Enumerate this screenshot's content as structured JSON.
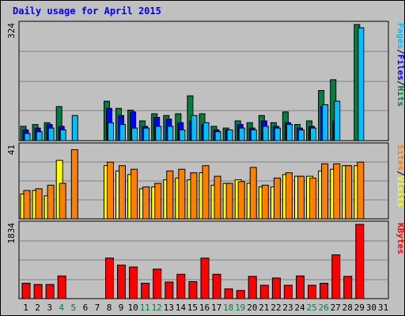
{
  "chart_data": {
    "type": "bar",
    "title": "Daily usage for April 2015",
    "days": [
      "1",
      "2",
      "3",
      "4",
      "5",
      "6",
      "7",
      "8",
      "9",
      "10",
      "11",
      "12",
      "13",
      "14",
      "15",
      "16",
      "17",
      "18",
      "19",
      "20",
      "21",
      "22",
      "23",
      "24",
      "25",
      "26",
      "27",
      "28",
      "29",
      "30",
      "31"
    ],
    "weekend_days": [
      "4",
      "5",
      "11",
      "12",
      "18",
      "19",
      "25",
      "26"
    ],
    "panels": [
      {
        "ylabel_max": "324",
        "ymax": 324,
        "legend": [
          "Pages",
          "/",
          "Files",
          "/",
          "Hits"
        ],
        "legend_colors": [
          "#00c0ff",
          "#000000",
          "#0000ff",
          "#000000",
          "#008040"
        ],
        "series": [
          {
            "name": "Hits",
            "color": "#008040",
            "values": [
              40,
              45,
              50,
              95,
              0,
              0,
              0,
              110,
              90,
              85,
              55,
              75,
              70,
              75,
              125,
              75,
              40,
              35,
              55,
              50,
              70,
              50,
              80,
              45,
              55,
              140,
              170,
              0,
              324,
              0,
              0
            ]
          },
          {
            "name": "Files",
            "color": "#0000ff",
            "values": [
              30,
              35,
              45,
              40,
              0,
              0,
              0,
              90,
              70,
              80,
              40,
              65,
              60,
              50,
              55,
              45,
              30,
              30,
              45,
              35,
              55,
              40,
              50,
              35,
              40,
              95,
              55,
              0,
              0,
              0,
              0
            ]
          },
          {
            "name": "Pages",
            "color": "#00c0ff",
            "values": [
              20,
              25,
              35,
              30,
              70,
              0,
              0,
              50,
              45,
              35,
              35,
              40,
              40,
              30,
              70,
              50,
              25,
              30,
              35,
              30,
              40,
              35,
              45,
              30,
              35,
              100,
              110,
              0,
              315,
              0,
              0
            ]
          }
        ]
      },
      {
        "ylabel_max": "41",
        "ymax": 41,
        "legend": [
          "Sites",
          "/",
          "Visits"
        ],
        "legend_colors": [
          "#ff8000",
          "#000000",
          "#ffff00"
        ],
        "series": [
          {
            "name": "Visits",
            "color": "#ffff00",
            "values": [
              14,
              16,
              13,
              33,
              0,
              0,
              0,
              30,
              27,
              25,
              17,
              18,
              22,
              23,
              22,
              26,
              19,
              20,
              22,
              20,
              18,
              18,
              25,
              24,
              24,
              27,
              28,
              30,
              30,
              0,
              0
            ]
          },
          {
            "name": "Sites",
            "color": "#ff8000",
            "values": [
              16,
              17,
              19,
              20,
              39,
              0,
              0,
              32,
              30,
              28,
              18,
              20,
              27,
              28,
              26,
              30,
              24,
              20,
              21,
              29,
              19,
              23,
              26,
              24,
              23,
              31,
              31,
              30,
              32,
              0,
              0
            ]
          }
        ]
      },
      {
        "ylabel_max": "1834",
        "ymax": 1834,
        "legend": [
          "KBytes"
        ],
        "legend_colors": [
          "#ff0000"
        ],
        "series": [
          {
            "name": "KBytes",
            "color": "#ff0000",
            "values": [
              380,
              350,
              350,
              560,
              0,
              0,
              0,
              1000,
              830,
              780,
              380,
              730,
              410,
              600,
              420,
              1000,
              600,
              240,
              200,
              550,
              330,
              510,
              330,
              560,
              330,
              380,
              1080,
              550,
              1834,
              0,
              0
            ]
          }
        ]
      }
    ]
  }
}
